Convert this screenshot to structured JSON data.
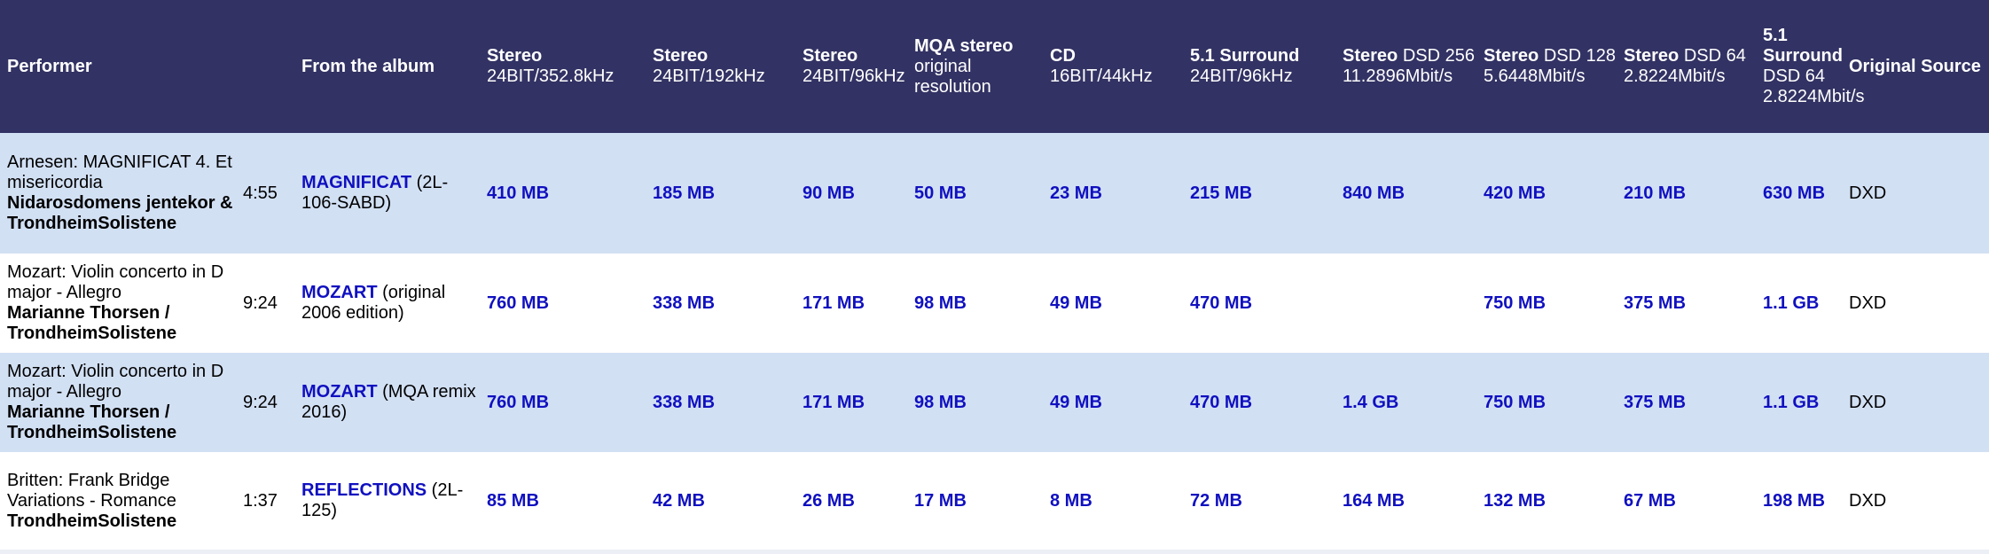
{
  "header": {
    "performer": "Performer",
    "album": "From the album",
    "columns": [
      {
        "bold": "Stereo",
        "normal": "24BIT/352.8kHz"
      },
      {
        "bold": "Stereo",
        "normal": "24BIT/192kHz"
      },
      {
        "bold": "Stereo",
        "normal": "24BIT/96kHz"
      },
      {
        "bold": "MQA stereo",
        "normal": "original resolution"
      },
      {
        "bold": "CD",
        "normal": "16BIT/44kHz"
      },
      {
        "bold": "5.1 Surround",
        "normal": "24BIT/96kHz"
      },
      {
        "bold": "Stereo",
        "normal": "DSD 256 11.2896Mbit/s"
      },
      {
        "bold": "Stereo",
        "normal": "DSD 128 5.6448Mbit/s"
      },
      {
        "bold": "Stereo",
        "normal": "DSD 64 2.8224Mbit/s"
      },
      {
        "bold": "5.1 Surround",
        "normal": "DSD 64 2.8224Mbit/s"
      },
      {
        "bold": "Original Source",
        "normal": ""
      }
    ]
  },
  "rows": [
    {
      "title": "Arnesen: MAGNIFICAT 4. Et misericordia",
      "artist": "Nidarosdomens jentekor & TrondheimSolistene",
      "duration": "4:55",
      "album_link": "MAGNIFICAT",
      "album_note": " (2L-106-SABD)",
      "sizes": [
        "410 MB",
        "185 MB",
        "90 MB",
        "50 MB",
        "23 MB",
        "215 MB",
        "840 MB",
        "420 MB",
        "210 MB",
        "630 MB"
      ],
      "source": "DXD"
    },
    {
      "title": "Mozart: Violin concerto in D major - Allegro",
      "artist": "Marianne Thorsen / TrondheimSolistene",
      "duration": "9:24",
      "album_link": "MOZART",
      "album_note": " (original 2006 edition)",
      "sizes": [
        "760 MB",
        "338 MB",
        "171 MB",
        "98 MB",
        "49 MB",
        "470 MB",
        "",
        "750 MB",
        "375 MB",
        "1.1 GB"
      ],
      "source": "DXD"
    },
    {
      "title": "Mozart: Violin concerto in D major - Allegro",
      "artist": "Marianne Thorsen / TrondheimSolistene",
      "duration": "9:24",
      "album_link": "MOZART",
      "album_note": " (MQA remix 2016)",
      "sizes": [
        "760 MB",
        "338 MB",
        "171 MB",
        "98 MB",
        "49 MB",
        "470 MB",
        "1.4 GB",
        "750 MB",
        "375 MB",
        "1.1 GB"
      ],
      "source": "DXD"
    },
    {
      "title": "Britten: Frank Bridge Variations - Romance",
      "artist": "TrondheimSolistene",
      "duration": "1:37",
      "album_link": "REFLECTIONS",
      "album_note": " (2L-125)",
      "sizes": [
        "85 MB",
        "42 MB",
        "26 MB",
        "17 MB",
        "8 MB",
        "72 MB",
        "164 MB",
        "132 MB",
        "67 MB",
        "198 MB"
      ],
      "source": "DXD"
    }
  ],
  "colors": {
    "header_bg": "#323264",
    "row_alt_bg": "#d2e0f4",
    "row_bg": "#ffffff",
    "link": "#1010c0"
  }
}
